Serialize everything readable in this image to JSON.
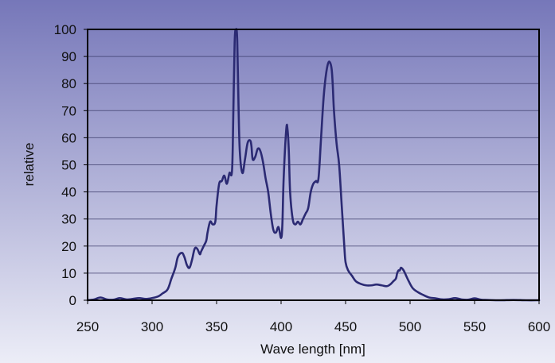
{
  "chart_data": {
    "type": "line",
    "xlabel": "Wave length [nm]",
    "ylabel": "relative",
    "xlim": [
      250,
      600
    ],
    "ylim": [
      0,
      100
    ],
    "xticks": [
      250,
      300,
      350,
      400,
      450,
      500,
      550,
      600
    ],
    "yticks": [
      0,
      10,
      20,
      30,
      40,
      50,
      60,
      70,
      80,
      90,
      100
    ],
    "grid": "horizontal",
    "colors": {
      "line": "#2b2a73",
      "background_top": "#7677b9",
      "background_bottom": "#ecedf7",
      "grid": "#3d3d6b",
      "frame": "#000000"
    },
    "series": [
      {
        "x": [
          250,
          255,
          260,
          265,
          270,
          275,
          280,
          285,
          290,
          295,
          300,
          305,
          308,
          312,
          315,
          318,
          320,
          323,
          325,
          327,
          329,
          331,
          333,
          335,
          337,
          338,
          340,
          342,
          343,
          345,
          347,
          349,
          350,
          352,
          354,
          356,
          358,
          360,
          362,
          363,
          364,
          365,
          366,
          367,
          368,
          370,
          372,
          374,
          376,
          377,
          378,
          380,
          382,
          384,
          386,
          388,
          390,
          392,
          394,
          396,
          398,
          400,
          401,
          402,
          404,
          405,
          406,
          407,
          409,
          411,
          413,
          415,
          417,
          419,
          421,
          423,
          425,
          427,
          429,
          431,
          433,
          435,
          437,
          439,
          440,
          441,
          443,
          445,
          447,
          449,
          450,
          452,
          455,
          458,
          462,
          466,
          470,
          474,
          478,
          482,
          485,
          487,
          489,
          490,
          491,
          492,
          493,
          495,
          497,
          499,
          502,
          506,
          510,
          515,
          520,
          525,
          530,
          535,
          540,
          545,
          550,
          555,
          560,
          570,
          580,
          590,
          600
        ],
        "y": [
          0,
          0.3,
          1,
          0.3,
          0.2,
          0.8,
          0.3,
          0.5,
          0.8,
          0.5,
          0.8,
          1.5,
          2.5,
          4,
          8,
          12,
          16,
          17.5,
          16,
          13,
          12,
          15,
          19,
          19,
          17,
          18,
          20,
          22,
          25,
          29,
          28,
          29,
          35,
          43,
          44,
          46,
          43,
          47,
          48,
          70,
          95,
          100,
          96,
          72,
          55,
          47,
          52,
          58,
          59,
          57,
          52,
          53,
          56,
          55,
          51,
          45,
          40,
          32,
          26,
          25,
          27,
          23,
          28,
          45,
          63,
          63,
          55,
          40,
          30,
          28,
          29,
          28,
          30,
          32,
          34,
          40,
          43,
          44,
          45,
          60,
          75,
          84,
          88,
          86,
          80,
          70,
          58,
          50,
          35,
          20,
          14,
          11,
          9,
          7,
          6,
          5.5,
          5.5,
          5.8,
          5.5,
          5.2,
          6,
          7,
          8,
          10,
          11,
          11,
          12,
          11,
          9,
          7,
          4.5,
          3,
          2,
          1,
          0.7,
          0.3,
          0.4,
          0.8,
          0.3,
          0.2,
          0.7,
          0.2,
          0.1,
          0,
          0.1,
          0,
          0
        ]
      }
    ]
  }
}
